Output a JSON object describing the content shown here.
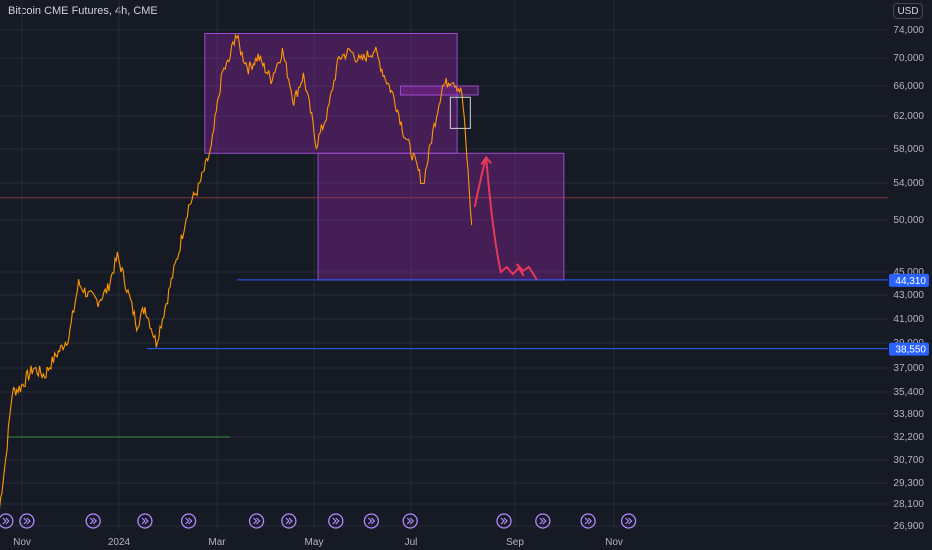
{
  "header": {
    "title": "Bitcoin CME Futures, 4h, CME",
    "currency": "USD"
  },
  "chart_data": {
    "type": "line",
    "y_ticks": [
      "74,000",
      "70,000",
      "66,000",
      "62,000",
      "58,000",
      "54,000",
      "50,000",
      "45,000",
      "43,000",
      "41,000",
      "39,000",
      "37,000",
      "35,400",
      "33,800",
      "32,200",
      "30,700",
      "29,300",
      "28,100",
      "26,900"
    ],
    "x_ticks": [
      "Nov",
      "2024",
      "Mar",
      "May",
      "Jul",
      "Sep",
      "Nov"
    ],
    "price_tags": [
      "44,310",
      "38,550"
    ],
    "horizontal_levels": [
      44310,
      38550,
      52400,
      32200
    ],
    "zones": [
      {
        "name": "upper",
        "x0": "2024-02-22",
        "x1": "2024-07-27",
        "y0": 57500,
        "y1": 73500
      },
      {
        "name": "lower",
        "x0": "2024-05-02",
        "x1": "2024-10-01",
        "y0": 44310,
        "y1": 57500
      },
      {
        "name": "small",
        "x0": "2024-06-22",
        "x1": "2024-08-09",
        "y0": 64800,
        "y1": 66000
      }
    ],
    "price_series": {
      "x": [
        "2023-10-18",
        "2023-10-22",
        "2023-10-26",
        "2023-10-31",
        "2023-11-08",
        "2023-11-15",
        "2023-11-22",
        "2023-11-30",
        "2023-12-06",
        "2023-12-12",
        "2023-12-18",
        "2023-12-24",
        "2023-12-30",
        "2024-01-04",
        "2024-01-11",
        "2024-01-16",
        "2024-01-23",
        "2024-01-30",
        "2024-02-06",
        "2024-02-12",
        "2024-02-18",
        "2024-02-26",
        "2024-03-04",
        "2024-03-08",
        "2024-03-12",
        "2024-03-16",
        "2024-03-20",
        "2024-03-26",
        "2024-04-03",
        "2024-04-10",
        "2024-04-17",
        "2024-04-23",
        "2024-05-01",
        "2024-05-08",
        "2024-05-15",
        "2024-05-22",
        "2024-05-28",
        "2024-06-06",
        "2024-06-12",
        "2024-06-18",
        "2024-06-24",
        "2024-06-30",
        "2024-07-06",
        "2024-07-12",
        "2024-07-18",
        "2024-07-24",
        "2024-07-30",
        "2024-08-05"
      ],
      "y": [
        27800,
        30800,
        35400,
        35700,
        37000,
        36500,
        38000,
        39500,
        44000,
        43000,
        42500,
        43500,
        46500,
        44000,
        40500,
        42000,
        39000,
        42800,
        47000,
        51500,
        53400,
        58000,
        68000,
        69500,
        73500,
        70500,
        68500,
        70200,
        67000,
        71000,
        64000,
        67500,
        58500,
        62500,
        70000,
        71000,
        69500,
        71200,
        67500,
        64500,
        60000,
        57000,
        53800,
        60000,
        66000,
        67000,
        65000,
        49500
      ]
    },
    "projection_path": [
      {
        "x": "2024-08-07",
        "y": 51500
      },
      {
        "x": "2024-08-14",
        "y": 57000
      },
      {
        "x": "2024-08-23",
        "y": 45000
      },
      {
        "x": "2024-09-02",
        "y": 45200
      },
      {
        "x": "2024-09-14",
        "y": 44400
      }
    ],
    "event_markers": [
      "2023-10-22",
      "2023-11-04",
      "2023-12-15",
      "2024-01-16",
      "2024-02-12",
      "2024-03-25",
      "2024-04-14",
      "2024-05-13",
      "2024-06-04",
      "2024-06-28",
      "2024-08-25",
      "2024-09-18",
      "2024-10-16",
      "2024-11-10"
    ],
    "colors": {
      "background": "#161a25",
      "grid": "#262a36",
      "price": "#ff9800",
      "zone_fill": "#9c27b0",
      "zone_border": "#9c4bd0",
      "level_blue": "#2962ff",
      "level_red": "#b0413e",
      "level_green": "#388e3c",
      "projection": "#e5395b",
      "marker": "#b388ff"
    }
  }
}
